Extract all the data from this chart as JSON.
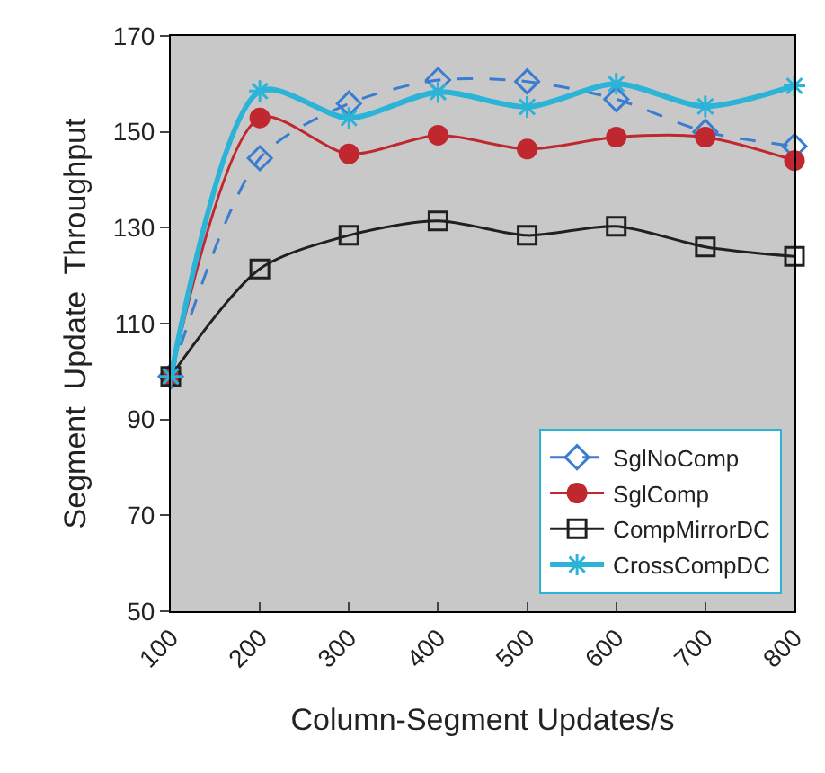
{
  "chart_data": {
    "type": "line",
    "xlabel": "Column-Segment Updates/s",
    "ylabel": "Segment  Update  Throughput",
    "x": [
      100,
      200,
      300,
      400,
      500,
      600,
      700,
      800
    ],
    "series": [
      {
        "name": "SglNoComp",
        "color": "#3a7dd0",
        "marker": "diamond",
        "line_style": "dashed",
        "values": [
          99,
          144.5,
          155.9,
          160.8,
          160.5,
          156.8,
          150,
          147
        ]
      },
      {
        "name": "SglComp",
        "color": "#c0282f",
        "marker": "circle",
        "line_style": "solid",
        "values": [
          99,
          152.9,
          145.4,
          149.3,
          146.4,
          148.9,
          148.9,
          144
        ]
      },
      {
        "name": "CompMirrorDC",
        "color": "#202020",
        "marker": "square",
        "line_style": "solid",
        "values": [
          99,
          121.4,
          128.4,
          131.4,
          128.4,
          130.3,
          126,
          124
        ]
      },
      {
        "name": "CrossCompDC",
        "color": "#2bb3d8",
        "marker": "cross",
        "line_style": "solid",
        "values": [
          99,
          158.5,
          152.9,
          158.3,
          155.2,
          160,
          155.3,
          159.6
        ]
      }
    ],
    "xlim": [
      100,
      800
    ],
    "xticks": [
      100,
      200,
      300,
      400,
      500,
      600,
      700,
      800
    ],
    "ylim": [
      50,
      170
    ],
    "yticks": [
      50,
      70,
      90,
      110,
      130,
      150,
      170
    ],
    "grid": false,
    "legend": "bottom right"
  }
}
